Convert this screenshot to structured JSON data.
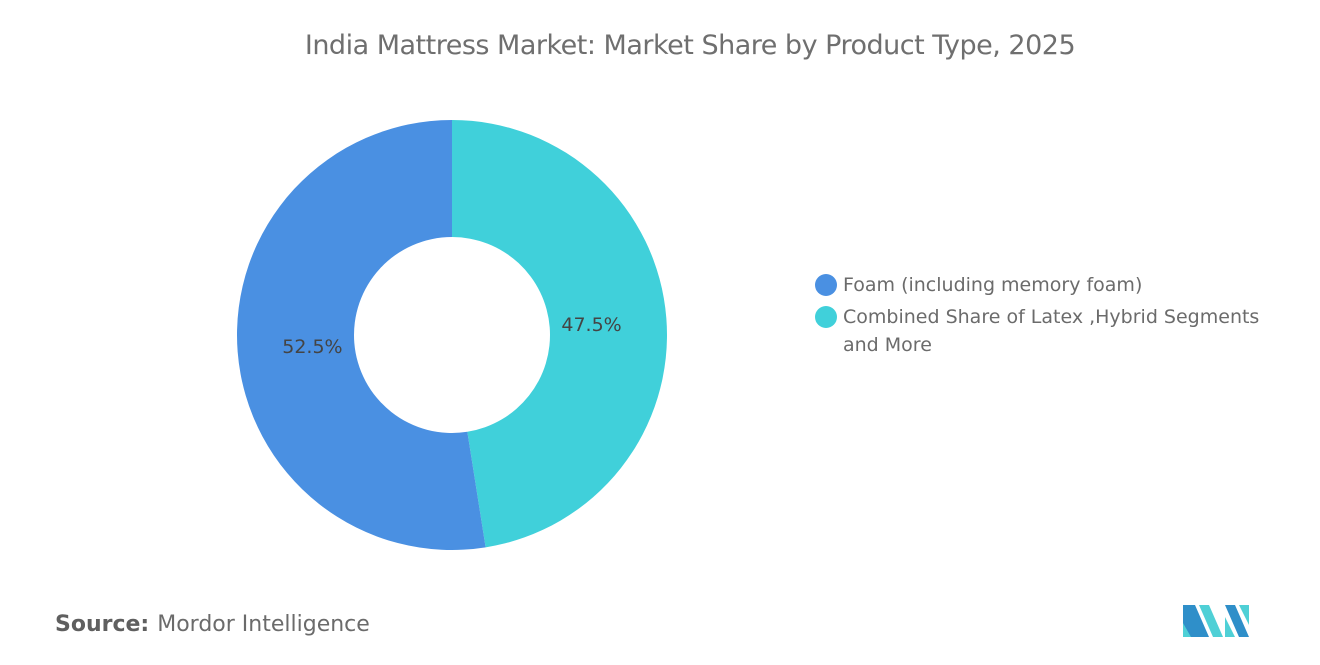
{
  "chart_data": {
    "type": "pie",
    "donut": true,
    "title": "India Mattress Market: Market Share by Product Type, 2025",
    "start": "top",
    "direction": "clockwise",
    "slices": [
      {
        "name": "Combined Share of Latex ,Hybrid Segments and More",
        "value": 47.5,
        "label": "47.5%",
        "color": "#40d0da"
      },
      {
        "name": "Foam (including memory foam)",
        "value": 52.5,
        "label": "52.5%",
        "color": "#4a90e2"
      }
    ],
    "legend": {
      "placement": "right",
      "items": [
        {
          "label": "Foam (including memory foam)",
          "color": "#4a90e2"
        },
        {
          "label": "Combined Share of Latex ,Hybrid Segments and More",
          "color": "#40d0da"
        }
      ]
    }
  },
  "source": {
    "label": "Source:",
    "value": "Mordor Intelligence"
  },
  "logo": {
    "text": "Mordor Intelligence"
  }
}
